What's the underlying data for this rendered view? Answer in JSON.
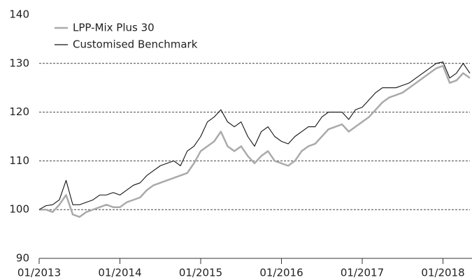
{
  "chart_data": {
    "type": "line",
    "x": [
      "2013-01",
      "2013-02",
      "2013-03",
      "2013-04",
      "2013-05",
      "2013-06",
      "2013-07",
      "2013-08",
      "2013-09",
      "2013-10",
      "2013-11",
      "2013-12",
      "2014-01",
      "2014-02",
      "2014-03",
      "2014-04",
      "2014-05",
      "2014-06",
      "2014-07",
      "2014-08",
      "2014-09",
      "2014-10",
      "2014-11",
      "2014-12",
      "2015-01",
      "2015-02",
      "2015-03",
      "2015-04",
      "2015-05",
      "2015-06",
      "2015-07",
      "2015-08",
      "2015-09",
      "2015-10",
      "2015-11",
      "2015-12",
      "2016-01",
      "2016-02",
      "2016-03",
      "2016-04",
      "2016-05",
      "2016-06",
      "2016-07",
      "2016-08",
      "2016-09",
      "2016-10",
      "2016-11",
      "2016-12",
      "2017-01",
      "2017-02",
      "2017-03",
      "2017-04",
      "2017-05",
      "2017-06",
      "2017-07",
      "2017-08",
      "2017-09",
      "2017-10",
      "2017-11",
      "2017-12",
      "2018-01",
      "2018-02",
      "2018-03",
      "2018-04",
      "2018-05"
    ],
    "series": [
      {
        "name": "LPP-Mix Plus 30",
        "color": "#aaaaaa",
        "values": [
          100,
          100,
          99.5,
          101,
          103,
          99,
          98.5,
          99.5,
          100,
          100.5,
          101,
          100.5,
          100.5,
          101.5,
          102,
          102.5,
          104,
          105,
          105.5,
          106,
          106.5,
          107,
          107.5,
          109.5,
          112,
          113,
          114,
          116,
          113,
          112,
          113,
          111,
          109.5,
          111,
          112,
          110,
          109.5,
          109,
          110,
          112,
          113,
          113.5,
          115,
          116.5,
          117,
          117.5,
          116,
          117,
          118,
          119,
          120.5,
          122,
          123,
          123.5,
          124,
          125,
          126,
          127,
          128,
          129,
          129.5,
          126,
          126.5,
          128,
          127
        ]
      },
      {
        "name": "Customised Benchmark",
        "color": "#111111",
        "values": [
          100,
          100.8,
          101,
          102,
          106,
          101,
          101,
          101.5,
          102,
          103,
          103,
          103.5,
          103,
          104,
          105,
          105.5,
          107,
          108,
          109,
          109.5,
          110,
          109,
          112,
          113,
          115,
          118,
          119,
          120.5,
          118,
          117,
          118,
          115,
          113,
          116,
          117,
          115,
          114,
          113.5,
          115,
          116,
          117,
          117,
          119,
          120,
          120,
          120,
          118.5,
          120.5,
          121,
          122.5,
          124,
          125,
          125,
          125,
          125.5,
          126,
          127,
          128,
          129,
          130,
          130.3,
          127,
          128,
          130,
          128
        ]
      }
    ],
    "xlim": [
      "2013-01",
      "2018-05"
    ],
    "xticks": [
      {
        "value": "2013-01",
        "label": "01/2013"
      },
      {
        "value": "2014-01",
        "label": "01/2014"
      },
      {
        "value": "2015-01",
        "label": "01/2015"
      },
      {
        "value": "2016-01",
        "label": "01/2016"
      },
      {
        "value": "2017-01",
        "label": "01/2017"
      },
      {
        "value": "2018-01",
        "label": "01/2018"
      }
    ],
    "ylim": [
      90,
      140
    ],
    "yticks": [
      90,
      100,
      110,
      120,
      130,
      140
    ],
    "grid": true,
    "legend": "top-left"
  }
}
